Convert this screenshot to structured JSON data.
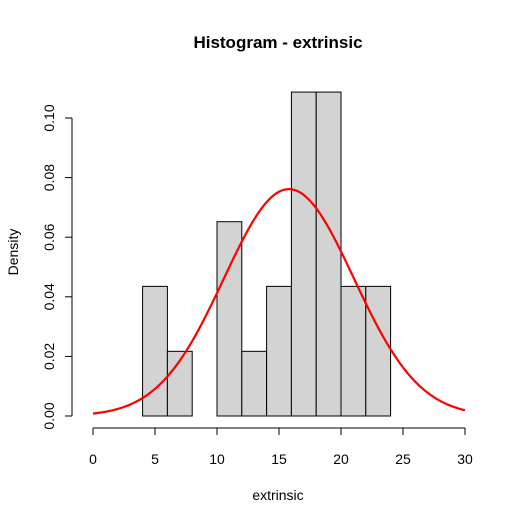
{
  "chart_data": {
    "type": "bar",
    "title": "Histogram - extrinsic",
    "xlabel": "extrinsic",
    "ylabel": "Density",
    "xlim": [
      0,
      30
    ],
    "ylim": [
      0,
      0.11
    ],
    "x_ticks": [
      "0",
      "5",
      "10",
      "15",
      "20",
      "25",
      "30"
    ],
    "y_ticks": [
      "0.00",
      "0.02",
      "0.04",
      "0.06",
      "0.08",
      "0.10"
    ],
    "bins": [
      {
        "start": 4,
        "end": 6,
        "density": 0.0435
      },
      {
        "start": 6,
        "end": 8,
        "density": 0.0217
      },
      {
        "start": 8,
        "end": 10,
        "density": 0.0
      },
      {
        "start": 10,
        "end": 12,
        "density": 0.0652
      },
      {
        "start": 12,
        "end": 14,
        "density": 0.0217
      },
      {
        "start": 14,
        "end": 16,
        "density": 0.0435
      },
      {
        "start": 16,
        "end": 18,
        "density": 0.1087
      },
      {
        "start": 18,
        "end": 20,
        "density": 0.1087
      },
      {
        "start": 20,
        "end": 22,
        "density": 0.0435
      },
      {
        "start": 22,
        "end": 24,
        "density": 0.0435
      }
    ],
    "bar_fill": "#d3d3d3",
    "bar_stroke": "#000000",
    "curve": {
      "type": "normal-density",
      "mean": 15.8,
      "sd": 5.24,
      "x_range": [
        0,
        30
      ],
      "color": "#ff0000"
    },
    "grid": false,
    "legend": "none"
  }
}
